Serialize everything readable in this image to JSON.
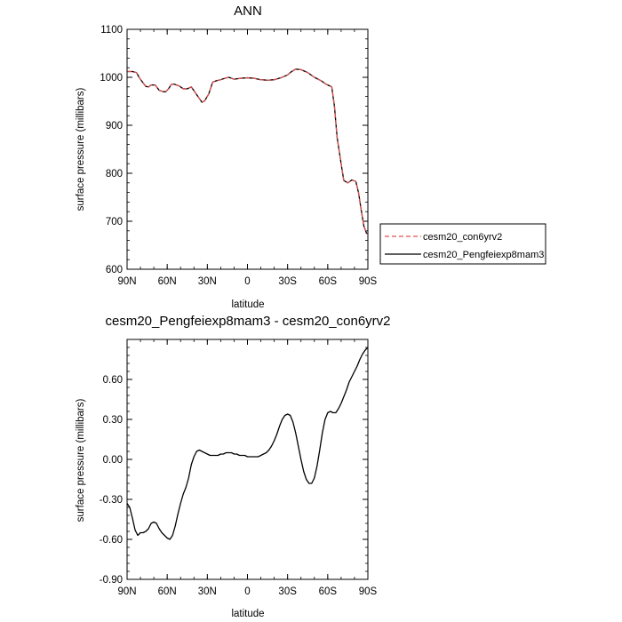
{
  "chart_data": [
    {
      "type": "line",
      "title": "ANN",
      "xlabel": "latitude",
      "ylabel": "surface pressure (millibars)",
      "xlim": [
        90,
        -90
      ],
      "ylim": [
        600,
        1100
      ],
      "x_ticks": [
        90,
        60,
        30,
        0,
        -30,
        -60,
        -90
      ],
      "x_tick_labels": [
        "90N",
        "60N",
        "30N",
        "0",
        "30S",
        "60S",
        "90S"
      ],
      "y_ticks": [
        600,
        700,
        800,
        900,
        1000,
        1100
      ],
      "y_tick_labels": [
        "600",
        "700",
        "800",
        "900",
        "1000",
        "1100"
      ],
      "legend": "right",
      "series": [
        {
          "name": "cesm20_con6yrv2",
          "color": "#e05050",
          "dash": true,
          "x": [
            90,
            86,
            83,
            81,
            79,
            76,
            74,
            72,
            69,
            66,
            63,
            61,
            59,
            57,
            55,
            51,
            48,
            45,
            42,
            40,
            37,
            34,
            32,
            29,
            26,
            23,
            20,
            17,
            14,
            10,
            5,
            0,
            -5,
            -10,
            -15,
            -20,
            -25,
            -30,
            -33,
            -36,
            -40,
            -45,
            -50,
            -55,
            -58,
            -60,
            -63,
            -65,
            -67,
            -70,
            -72,
            -75,
            -78,
            -81,
            -83,
            -85,
            -87,
            -89,
            -90
          ],
          "y": [
            1012,
            1012,
            1010,
            1000,
            992,
            981,
            980,
            984,
            984,
            973,
            970,
            970,
            976,
            985,
            986,
            982,
            976,
            976,
            980,
            972,
            960,
            948,
            951,
            965,
            990,
            993,
            995,
            998,
            1000,
            996,
            998,
            999,
            998,
            995,
            994,
            995,
            999,
            1005,
            1012,
            1017,
            1016,
            1010,
            1000,
            993,
            987,
            984,
            980,
            940,
            875,
            820,
            785,
            780,
            786,
            783,
            760,
            724,
            690,
            675,
            674
          ]
        },
        {
          "name": "cesm20_Pengfeiexp8mam3",
          "color": "#000000",
          "dash": false,
          "x": [
            90,
            86,
            83,
            81,
            79,
            76,
            74,
            72,
            69,
            66,
            63,
            61,
            59,
            57,
            55,
            51,
            48,
            45,
            42,
            40,
            37,
            34,
            32,
            29,
            26,
            23,
            20,
            17,
            14,
            10,
            5,
            0,
            -5,
            -10,
            -15,
            -20,
            -25,
            -30,
            -33,
            -36,
            -40,
            -45,
            -50,
            -55,
            -58,
            -60,
            -63,
            -65,
            -67,
            -70,
            -72,
            -75,
            -78,
            -81,
            -83,
            -85,
            -87,
            -89,
            -90
          ],
          "y": [
            1012,
            1012,
            1010,
            1000,
            992,
            981,
            980,
            984,
            984,
            973,
            970,
            970,
            976,
            985,
            986,
            982,
            976,
            976,
            980,
            972,
            960,
            948,
            951,
            965,
            990,
            993,
            995,
            998,
            1000,
            996,
            998,
            999,
            998,
            995,
            994,
            995,
            999,
            1005,
            1012,
            1017,
            1016,
            1010,
            1000,
            993,
            987,
            984,
            980,
            940,
            875,
            820,
            785,
            780,
            786,
            783,
            760,
            724,
            690,
            675,
            674
          ]
        }
      ]
    },
    {
      "type": "line",
      "title": "cesm20_Pengfeiexp8mam3 - cesm20_con6yrv2",
      "xlabel": "latitude",
      "ylabel": "surface pressure (millibars)",
      "xlim": [
        90,
        -90
      ],
      "ylim": [
        -0.9,
        0.9
      ],
      "x_ticks": [
        90,
        60,
        30,
        0,
        -30,
        -60,
        -90
      ],
      "x_tick_labels": [
        "90N",
        "60N",
        "30N",
        "0",
        "30S",
        "60S",
        "90S"
      ],
      "y_ticks": [
        -0.9,
        -0.6,
        -0.3,
        0.0,
        0.3,
        0.6
      ],
      "y_tick_labels": [
        "-0.90",
        "-0.60",
        "-0.30",
        "0.00",
        "0.30",
        "0.60"
      ],
      "series": [
        {
          "color": "#000000",
          "x": [
            90,
            88,
            86,
            84,
            82,
            80,
            78,
            76,
            74,
            72,
            70,
            68,
            66,
            64,
            62,
            60,
            58,
            56,
            54,
            52,
            50,
            48,
            46,
            44,
            42,
            40,
            38,
            36,
            34,
            32,
            30,
            28,
            26,
            24,
            22,
            20,
            18,
            16,
            14,
            12,
            10,
            8,
            6,
            4,
            2,
            0,
            -2,
            -4,
            -6,
            -8,
            -10,
            -12,
            -14,
            -16,
            -18,
            -20,
            -22,
            -24,
            -26,
            -28,
            -30,
            -32,
            -34,
            -36,
            -38,
            -40,
            -42,
            -44,
            -46,
            -48,
            -50,
            -52,
            -54,
            -56,
            -58,
            -60,
            -62,
            -64,
            -66,
            -68,
            -70,
            -72,
            -74,
            -76,
            -78,
            -80,
            -82,
            -84,
            -86,
            -88,
            -90
          ],
          "y": [
            -0.33,
            -0.36,
            -0.44,
            -0.53,
            -0.57,
            -0.55,
            -0.55,
            -0.54,
            -0.52,
            -0.48,
            -0.47,
            -0.48,
            -0.52,
            -0.55,
            -0.57,
            -0.59,
            -0.6,
            -0.57,
            -0.5,
            -0.41,
            -0.33,
            -0.26,
            -0.21,
            -0.14,
            -0.04,
            0.02,
            0.06,
            0.07,
            0.06,
            0.05,
            0.04,
            0.03,
            0.03,
            0.03,
            0.03,
            0.04,
            0.04,
            0.05,
            0.05,
            0.05,
            0.04,
            0.04,
            0.03,
            0.03,
            0.03,
            0.02,
            0.02,
            0.02,
            0.02,
            0.02,
            0.03,
            0.04,
            0.05,
            0.07,
            0.1,
            0.14,
            0.19,
            0.25,
            0.3,
            0.33,
            0.34,
            0.33,
            0.28,
            0.2,
            0.1,
            0.0,
            -0.09,
            -0.15,
            -0.18,
            -0.18,
            -0.14,
            -0.05,
            0.07,
            0.2,
            0.3,
            0.35,
            0.36,
            0.35,
            0.35,
            0.38,
            0.42,
            0.47,
            0.52,
            0.58,
            0.62,
            0.66,
            0.7,
            0.75,
            0.79,
            0.82,
            0.84
          ]
        }
      ]
    }
  ]
}
